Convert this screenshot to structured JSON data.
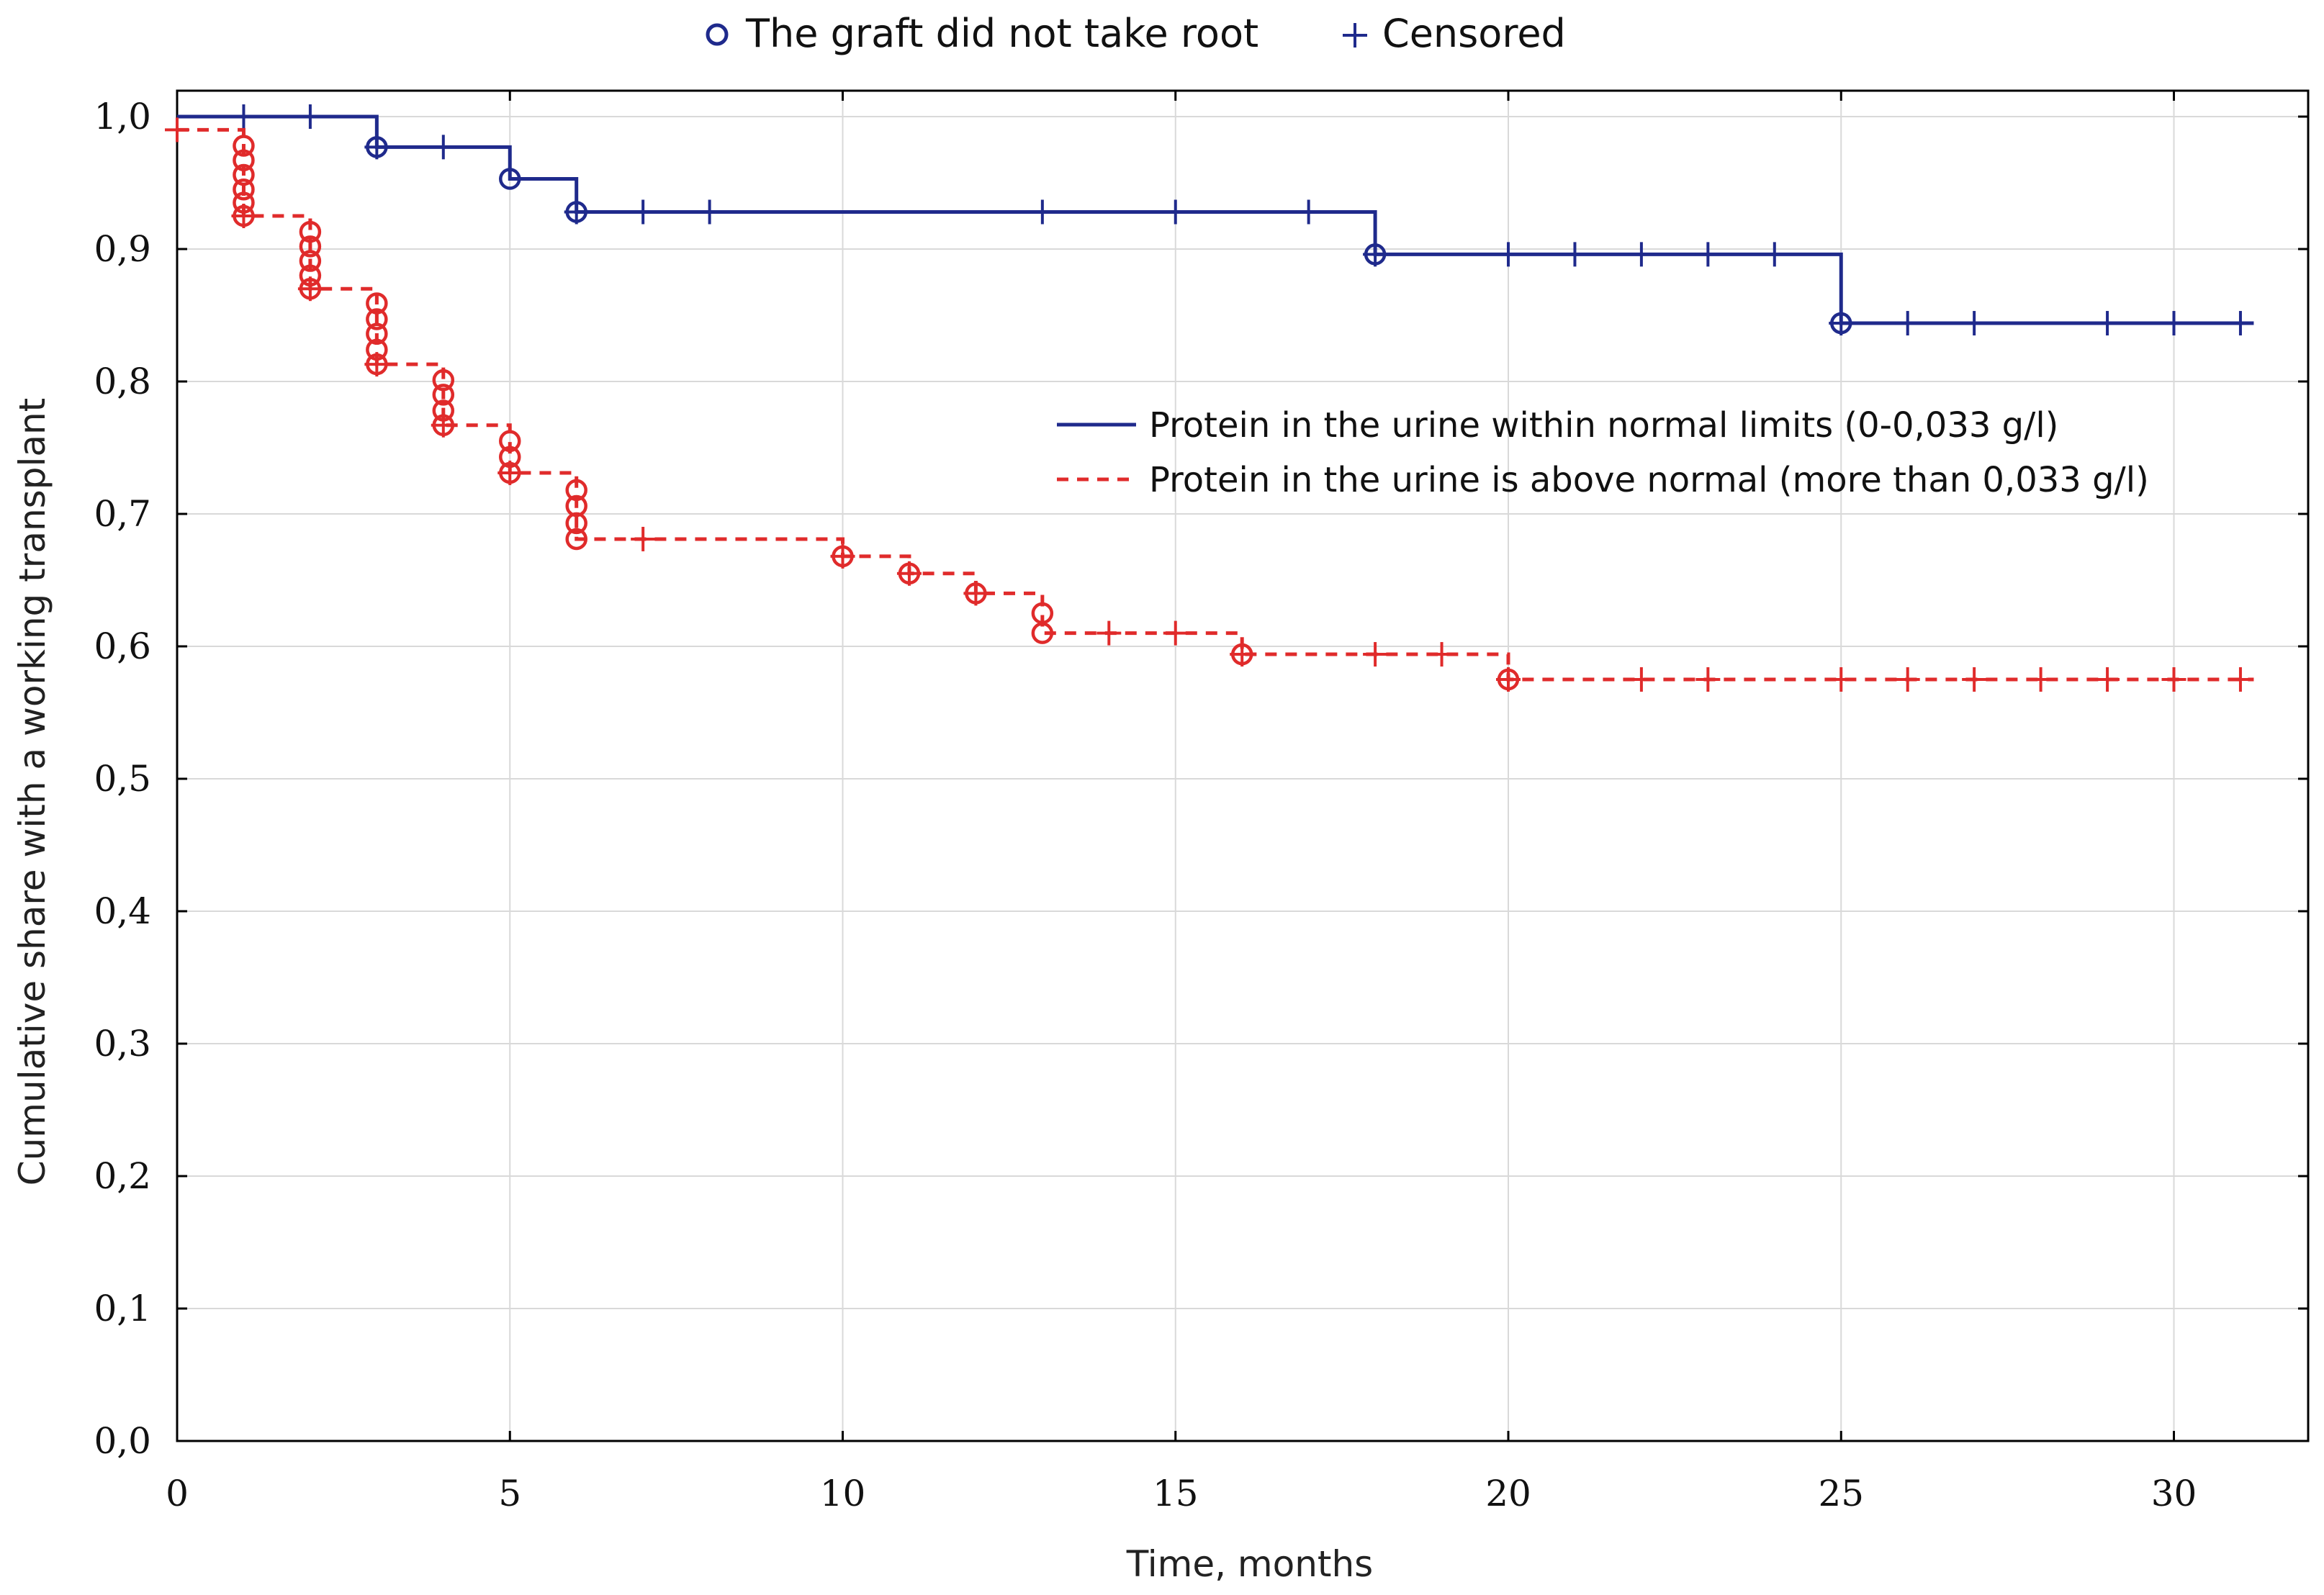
{
  "chart_data": {
    "type": "line",
    "subtype": "kaplan-meier",
    "title": "",
    "xlabel": "Time, months",
    "ylabel": "Cumulative share with a working transplant",
    "xlim": [
      0,
      32
    ],
    "ylim": [
      0,
      1.0
    ],
    "grid": true,
    "x_ticks": [
      0,
      5,
      10,
      15,
      20,
      25,
      30
    ],
    "x_tick_labels": [
      "0",
      "5",
      "10",
      "15",
      "20",
      "25",
      "30"
    ],
    "y_ticks": [
      0,
      0.1,
      0.2,
      0.3,
      0.4,
      0.5,
      0.6,
      0.7,
      0.8,
      0.9,
      1.0
    ],
    "y_tick_labels": [
      "0,0",
      "0,1",
      "0,2",
      "0,3",
      "0,4",
      "0,5",
      "0,6",
      "0,7",
      "0,8",
      "0,9",
      "1,0"
    ],
    "top_legend": {
      "event_label": "The graft did not take root",
      "censor_label": "Censored"
    },
    "series": [
      {
        "name": "Protein in the urine within normal limits (0-0,033 g/l)",
        "color": "#1f2a8c",
        "dash": "solid",
        "steps": [
          [
            0,
            1.0
          ],
          [
            3,
            0.977
          ],
          [
            5,
            0.953
          ],
          [
            6,
            0.928
          ],
          [
            18,
            0.896
          ],
          [
            25,
            0.844
          ]
        ],
        "end_x": 31.2,
        "events": [
          [
            3,
            0.977
          ],
          [
            5,
            0.953
          ],
          [
            6,
            0.928
          ],
          [
            18,
            0.896
          ],
          [
            25,
            0.844
          ]
        ],
        "censored": [
          [
            1,
            1.0
          ],
          [
            2,
            1.0
          ],
          [
            3,
            0.977
          ],
          [
            4,
            0.977
          ],
          [
            6,
            0.928
          ],
          [
            7,
            0.928
          ],
          [
            8,
            0.928
          ],
          [
            13,
            0.928
          ],
          [
            15,
            0.928
          ],
          [
            17,
            0.928
          ],
          [
            18,
            0.896
          ],
          [
            20,
            0.896
          ],
          [
            21,
            0.896
          ],
          [
            22,
            0.896
          ],
          [
            23,
            0.896
          ],
          [
            24,
            0.896
          ],
          [
            25,
            0.844
          ],
          [
            26,
            0.844
          ],
          [
            27,
            0.844
          ],
          [
            29,
            0.844
          ],
          [
            30,
            0.844
          ],
          [
            31,
            0.844
          ]
        ]
      },
      {
        "name": "Protein in the urine is above normal (more than 0,033 g/l)",
        "color": "#e02b2b",
        "dash": "dashed",
        "steps": [
          [
            0,
            0.99
          ],
          [
            1,
            0.925
          ],
          [
            2,
            0.87
          ],
          [
            3,
            0.813
          ],
          [
            4,
            0.767
          ],
          [
            5,
            0.731
          ],
          [
            6,
            0.681
          ],
          [
            10,
            0.668
          ],
          [
            11,
            0.655
          ],
          [
            12,
            0.64
          ],
          [
            13,
            0.61
          ],
          [
            16,
            0.594
          ],
          [
            20,
            0.575
          ]
        ],
        "end_x": 31.2,
        "events": [
          [
            1,
            0.978
          ],
          [
            1,
            0.967
          ],
          [
            1,
            0.956
          ],
          [
            1,
            0.945
          ],
          [
            1,
            0.935
          ],
          [
            1,
            0.925
          ],
          [
            2,
            0.913
          ],
          [
            2,
            0.902
          ],
          [
            2,
            0.891
          ],
          [
            2,
            0.88
          ],
          [
            2,
            0.87
          ],
          [
            3,
            0.859
          ],
          [
            3,
            0.847
          ],
          [
            3,
            0.836
          ],
          [
            3,
            0.824
          ],
          [
            3,
            0.813
          ],
          [
            4,
            0.801
          ],
          [
            4,
            0.79
          ],
          [
            4,
            0.778
          ],
          [
            4,
            0.767
          ],
          [
            5,
            0.755
          ],
          [
            5,
            0.743
          ],
          [
            5,
            0.731
          ],
          [
            6,
            0.718
          ],
          [
            6,
            0.706
          ],
          [
            6,
            0.693
          ],
          [
            6,
            0.681
          ],
          [
            10,
            0.668
          ],
          [
            11,
            0.655
          ],
          [
            12,
            0.64
          ],
          [
            13,
            0.625
          ],
          [
            13,
            0.61
          ],
          [
            16,
            0.594
          ],
          [
            20,
            0.575
          ]
        ],
        "censored": [
          [
            0,
            0.99
          ],
          [
            1,
            0.925
          ],
          [
            2,
            0.87
          ],
          [
            3,
            0.813
          ],
          [
            4,
            0.767
          ],
          [
            5,
            0.731
          ],
          [
            7,
            0.681
          ],
          [
            10,
            0.668
          ],
          [
            11,
            0.655
          ],
          [
            12,
            0.64
          ],
          [
            14,
            0.61
          ],
          [
            15,
            0.61
          ],
          [
            16,
            0.594
          ],
          [
            18,
            0.594
          ],
          [
            19,
            0.594
          ],
          [
            20,
            0.575
          ],
          [
            22,
            0.575
          ],
          [
            23,
            0.575
          ],
          [
            25,
            0.575
          ],
          [
            26,
            0.575
          ],
          [
            27,
            0.575
          ],
          [
            28,
            0.575
          ],
          [
            29,
            0.575
          ],
          [
            30,
            0.575
          ],
          [
            31,
            0.575
          ]
        ]
      }
    ],
    "inner_legend_placement": "upper-right"
  }
}
